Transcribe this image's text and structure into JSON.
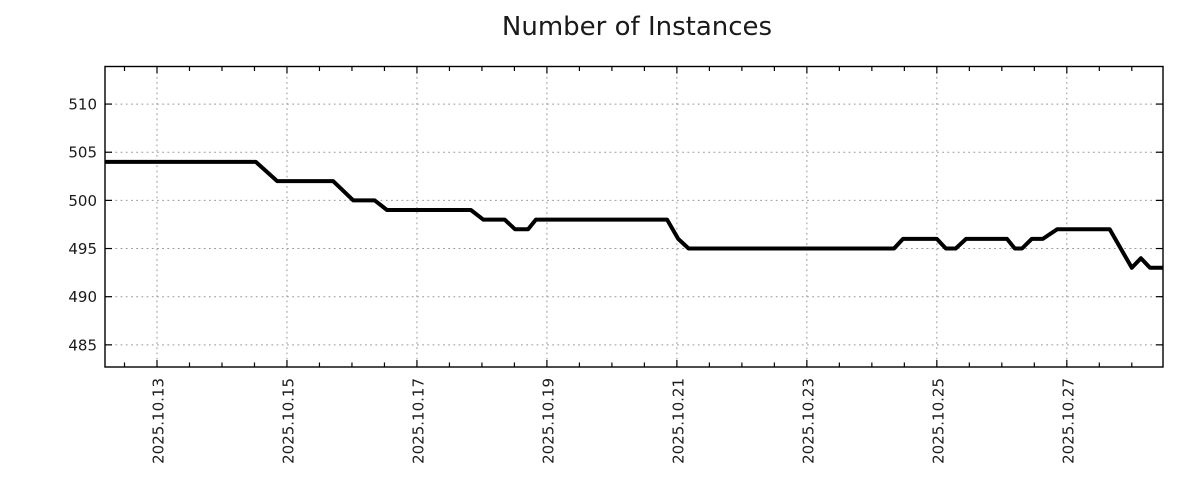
{
  "chart_data": {
    "type": "line",
    "title": "Number of Instances",
    "x_axis": {
      "unit": "day of 2025.10",
      "tick_labels": [
        "2025.10.13",
        "2025.10.15",
        "2025.10.17",
        "2025.10.19",
        "2025.10.21",
        "2025.10.23",
        "2025.10.25",
        "2025.10.27"
      ],
      "major_ticks": [
        13,
        15,
        17,
        19,
        21,
        23,
        25,
        27
      ],
      "minor_tick_step": 0.5,
      "xlim": [
        12.2,
        28.48
      ]
    },
    "y_axis": {
      "tick_labels": [
        "485",
        "490",
        "495",
        "500",
        "505",
        "510"
      ],
      "ticks": [
        485,
        490,
        495,
        500,
        505,
        510
      ],
      "ylim": [
        482.7,
        513.9
      ]
    },
    "grid": {
      "show": true,
      "style": "dotted",
      "color": "#999999"
    },
    "legend": {
      "show": false
    },
    "axis_color": "#000000",
    "series": [
      {
        "name": "Number of Instances",
        "color": "#000000",
        "line_width": 4,
        "points": [
          [
            12.2,
            504
          ],
          [
            14.52,
            504
          ],
          [
            14.85,
            502
          ],
          [
            15.71,
            502
          ],
          [
            16.02,
            500
          ],
          [
            16.35,
            500
          ],
          [
            16.54,
            499
          ],
          [
            17.83,
            499
          ],
          [
            18.02,
            498
          ],
          [
            18.35,
            498
          ],
          [
            18.51,
            497
          ],
          [
            18.71,
            497
          ],
          [
            18.83,
            498
          ],
          [
            20.85,
            498
          ],
          [
            21.02,
            496
          ],
          [
            21.18,
            495
          ],
          [
            24.34,
            495
          ],
          [
            24.48,
            496
          ],
          [
            25.0,
            496
          ],
          [
            25.14,
            495
          ],
          [
            25.29,
            495
          ],
          [
            25.45,
            496
          ],
          [
            26.08,
            496
          ],
          [
            26.2,
            495
          ],
          [
            26.31,
            495
          ],
          [
            26.46,
            496
          ],
          [
            26.63,
            496
          ],
          [
            26.85,
            497
          ],
          [
            27.66,
            497
          ],
          [
            28.0,
            493
          ],
          [
            28.14,
            494
          ],
          [
            28.28,
            493
          ],
          [
            28.48,
            493
          ]
        ]
      }
    ]
  }
}
